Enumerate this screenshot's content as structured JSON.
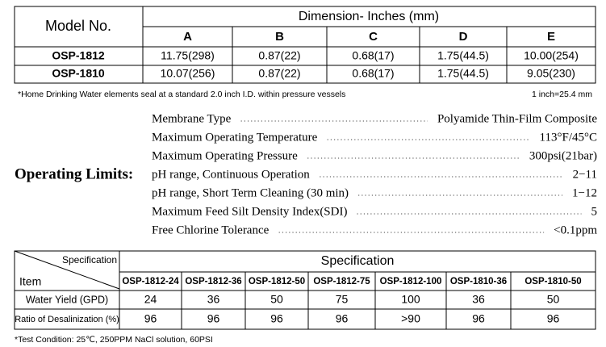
{
  "dimension_table": {
    "header": {
      "model": "Model No.",
      "dimension": "Dimension- Inches (mm)",
      "columns": [
        "A",
        "B",
        "C",
        "D",
        "E"
      ]
    },
    "rows": [
      {
        "model": "OSP-1812",
        "values": [
          "11.75(298)",
          "0.87(22)",
          "0.68(17)",
          "1.75(44.5)",
          "10.00(254)"
        ]
      },
      {
        "model": "OSP-1810",
        "values": [
          "10.07(256)",
          "0.87(22)",
          "0.68(17)",
          "1.75(44.5)",
          "9.05(230)"
        ]
      }
    ]
  },
  "dimension_note": "*Home Drinking Water elements seal at a standard 2.0 inch I.D. within pressure vessels",
  "conversion_note": "1 inch=25.4 mm",
  "operating_limits": {
    "title": "Operating Limits:",
    "items": [
      {
        "label": "Membrane Type",
        "value": "Polyamide Thin-Film Composite"
      },
      {
        "label": "Maximum Operating Temperature",
        "value": "113°F/45°C"
      },
      {
        "label": "Maximum Operating Pressure",
        "value": "300psi(21bar)"
      },
      {
        "label": "pH range, Continuous Operation",
        "value": "2−11"
      },
      {
        "label": "pH range, Short  Term Cleaning (30 min)",
        "value": "1−12"
      },
      {
        "label": "Maximum Feed Silt Density Index(SDI)",
        "value": "5"
      },
      {
        "label": "Free Chlorine Tolerance",
        "value": "<0.1ppm"
      }
    ]
  },
  "spec_table": {
    "corner_top": "Specification",
    "corner_bottom": "Item",
    "title": "Specification",
    "models": [
      "OSP-1812-24",
      "OSP-1812-36",
      "OSP-1812-50",
      "OSP-1812-75",
      "OSP-1812-100",
      "OSP-1810-36",
      "OSP-1810-50"
    ],
    "rows": [
      {
        "label": "Water Yield (GPD)",
        "values": [
          "24",
          "36",
          "50",
          "75",
          "100",
          "36",
          "50"
        ]
      },
      {
        "label": "Ratio of Desalinization (%)",
        "values": [
          "96",
          "96",
          "96",
          "96",
          ">90",
          "96",
          "96"
        ]
      }
    ]
  },
  "test_note": "*Test Condition: 25℃, 250PPM NaCl solution, 60PSI"
}
